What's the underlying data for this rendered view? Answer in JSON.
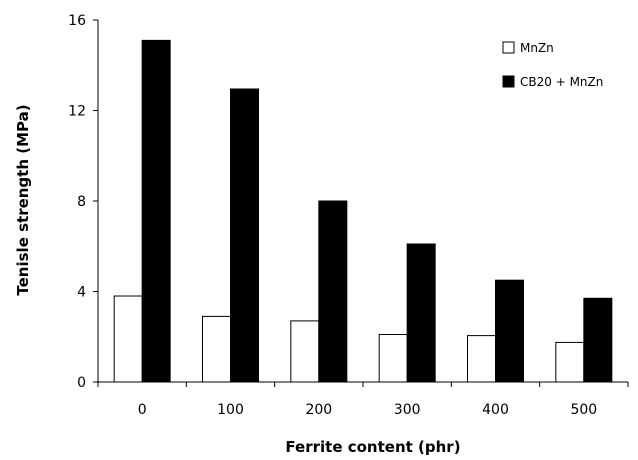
{
  "chart_data": {
    "type": "bar",
    "title": "",
    "xlabel": "Ferrite content (phr)",
    "ylabel": "Tenisle strength (MPa)",
    "categories": [
      "0",
      "100",
      "200",
      "300",
      "400",
      "500"
    ],
    "yticks": [
      "0",
      "4",
      "8",
      "12",
      "16"
    ],
    "ylim": [
      0,
      16
    ],
    "grid": false,
    "legend_position": "top-right",
    "series": [
      {
        "name": "MnZn",
        "values": [
          3.8,
          2.9,
          2.7,
          2.1,
          2.05,
          1.75
        ],
        "fill": "#ffffff",
        "stroke": "#000000"
      },
      {
        "name": "CB20 + MnZn",
        "values": [
          15.1,
          12.95,
          8.0,
          6.1,
          4.5,
          3.7
        ],
        "fill": "#000000",
        "stroke": "#000000"
      }
    ]
  }
}
